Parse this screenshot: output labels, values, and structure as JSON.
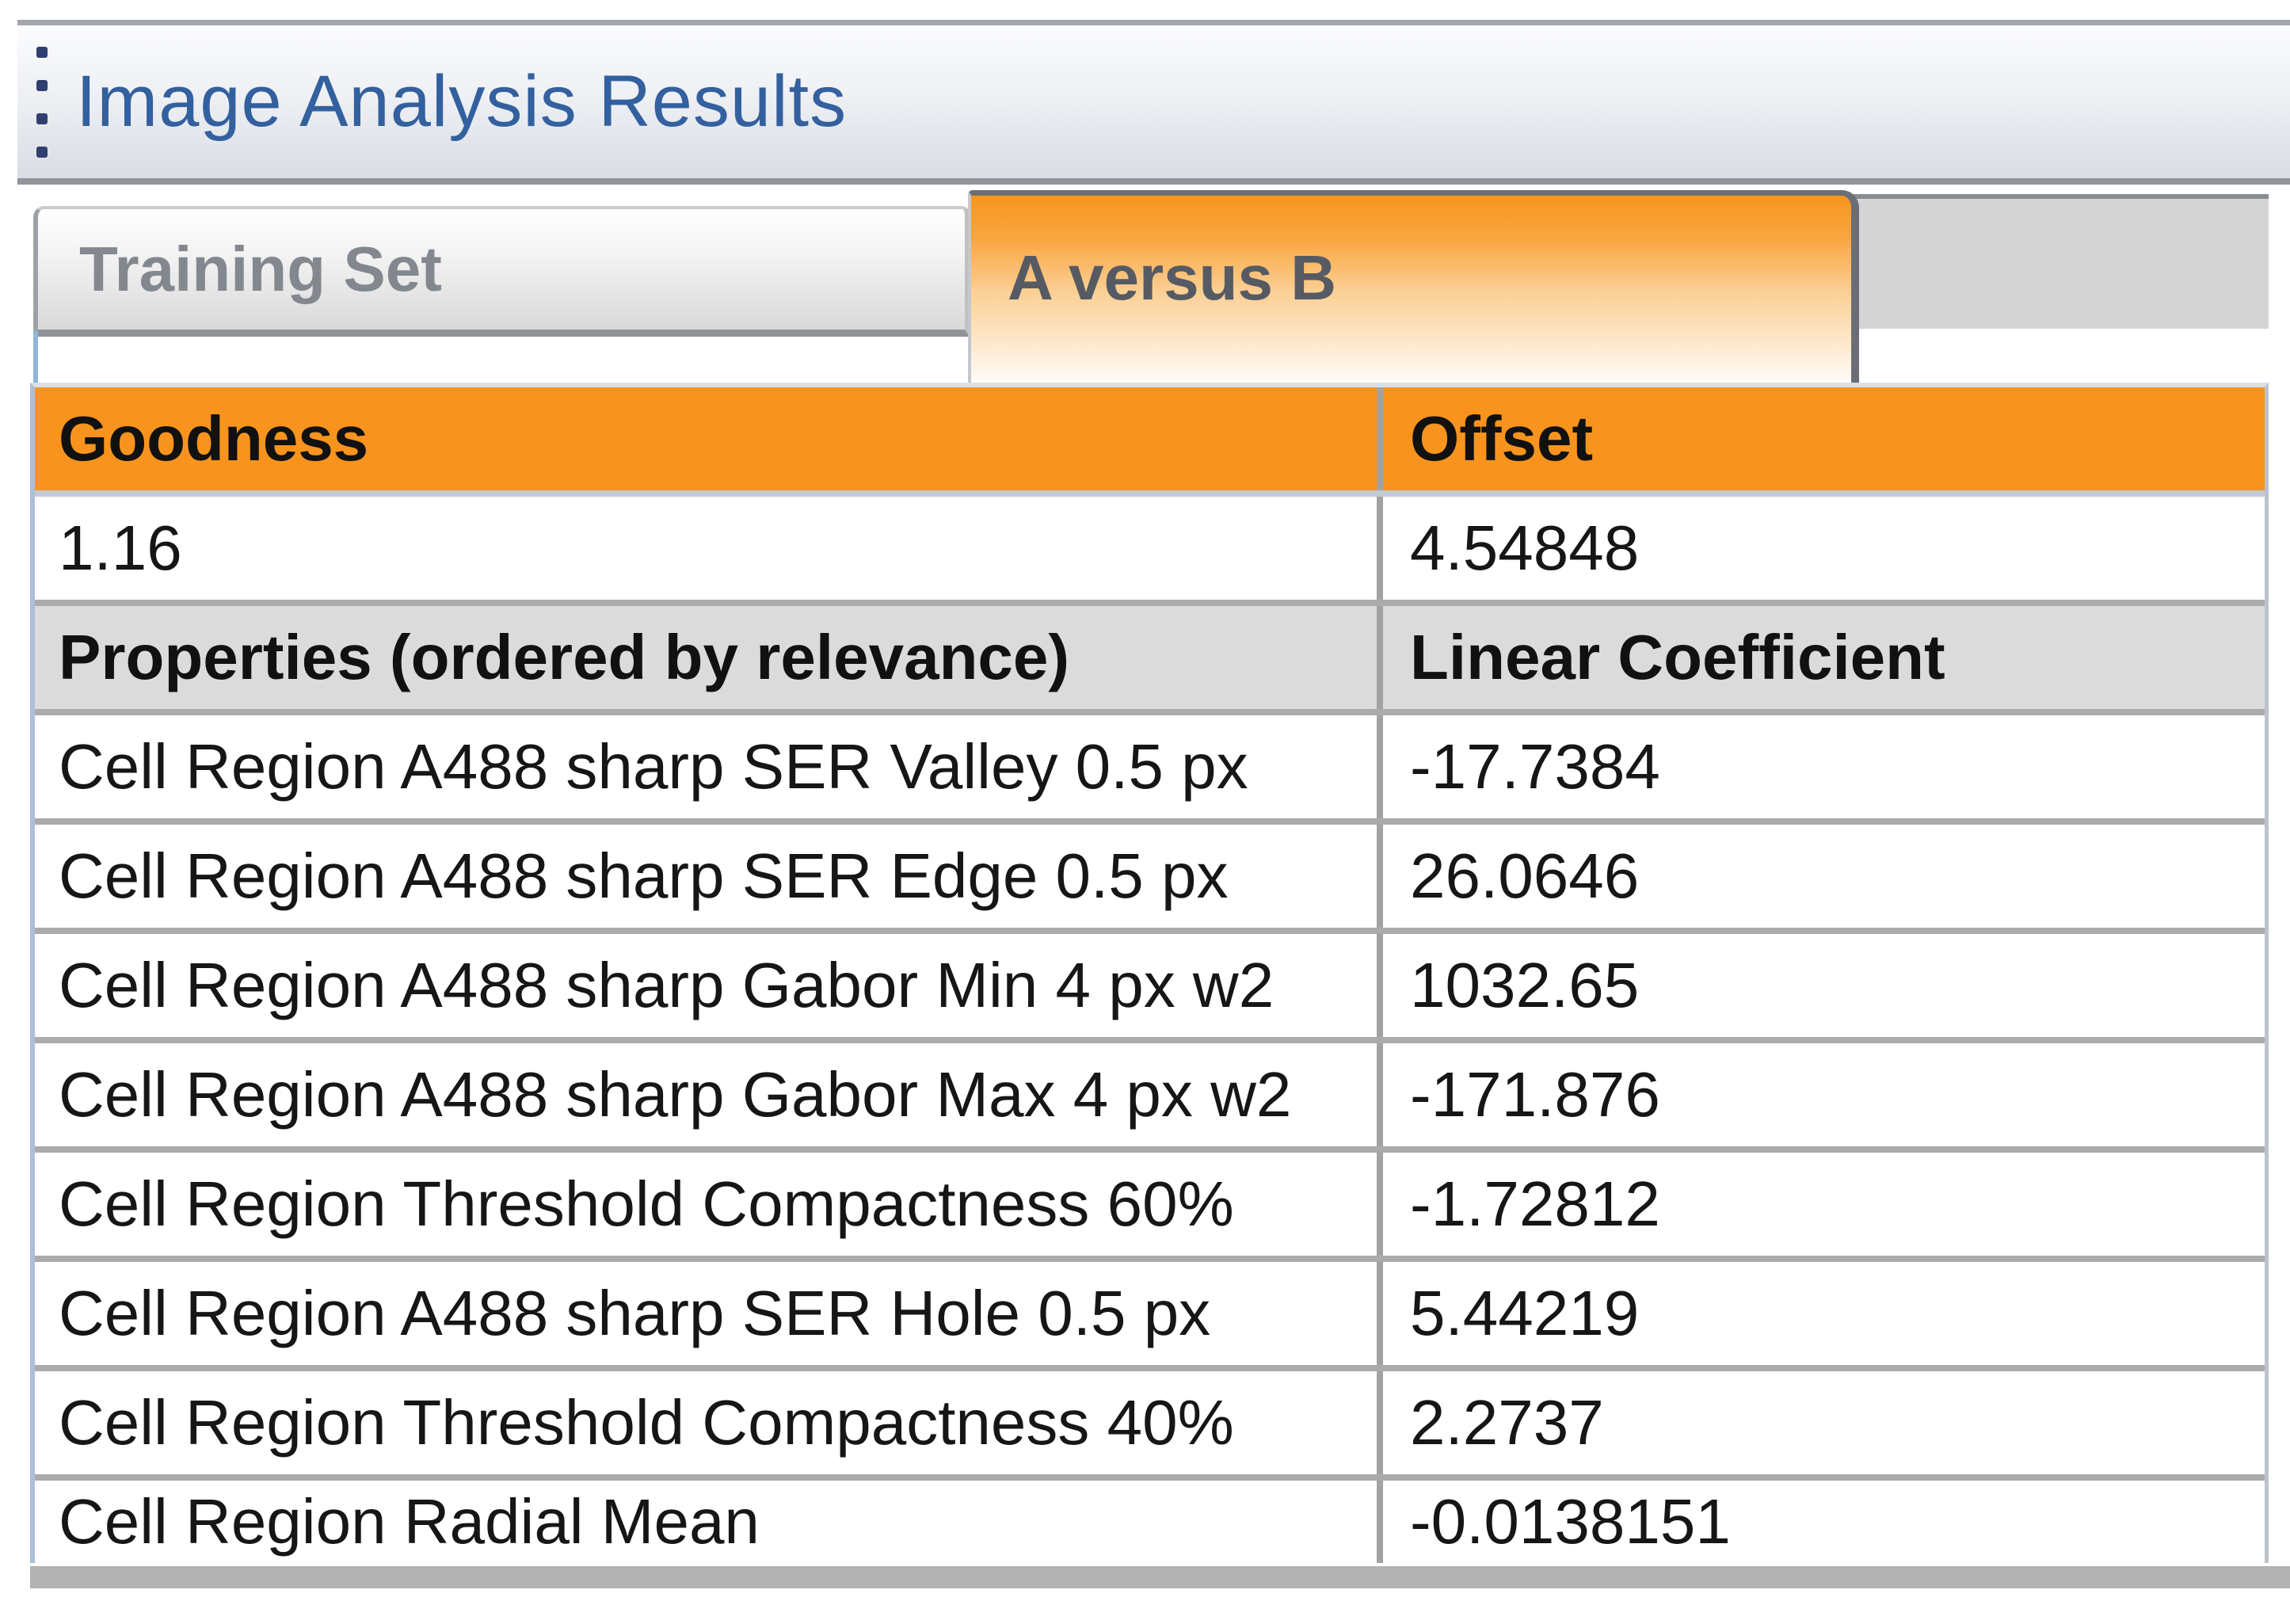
{
  "panel": {
    "title": "Image Analysis Results"
  },
  "tabs": [
    {
      "label": "Training Set",
      "active": false
    },
    {
      "label": "A versus B",
      "active": true
    }
  ],
  "table": {
    "goodness_header": "Goodness",
    "offset_header": "Offset",
    "goodness_value": "1.16",
    "offset_value": "4.54848",
    "properties_header": "Properties (ordered by relevance)",
    "coefficient_header": "Linear Coefficient",
    "rows": [
      {
        "property": "Cell Region A488 sharp SER Valley 0.5 px",
        "coefficient": "-17.7384"
      },
      {
        "property": "Cell Region A488 sharp SER Edge 0.5 px",
        "coefficient": "26.0646"
      },
      {
        "property": "Cell Region A488 sharp Gabor Min 4 px w2",
        "coefficient": "1032.65"
      },
      {
        "property": "Cell Region A488 sharp Gabor Max 4 px w2",
        "coefficient": "-171.876"
      },
      {
        "property": "Cell Region Threshold Compactness 60%",
        "coefficient": "-1.72812"
      },
      {
        "property": "Cell Region A488 sharp SER Hole 0.5 px",
        "coefficient": "5.44219"
      },
      {
        "property": "Cell Region Threshold Compactness 40%",
        "coefficient": "2.2737"
      },
      {
        "property": "Cell Region Radial Mean",
        "coefficient": "-0.0138151"
      }
    ]
  },
  "colors": {
    "accent_orange": "#F8941E",
    "header_gray": "#DBDBDB",
    "title_blue": "#33609E",
    "row_border_gray": "#ABABAB"
  }
}
